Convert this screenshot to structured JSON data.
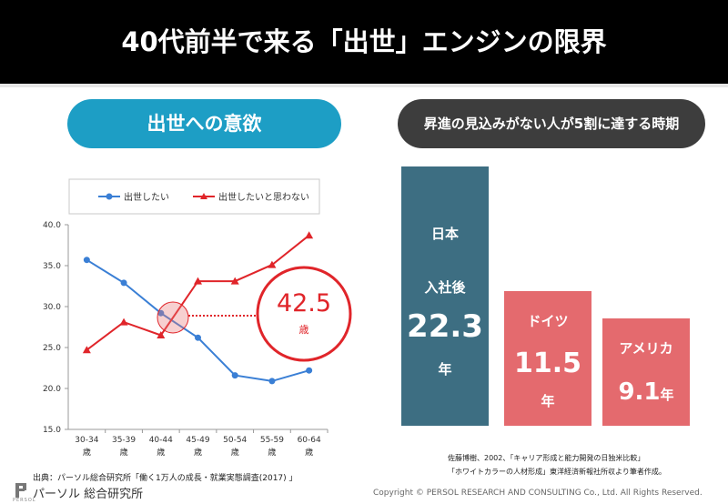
{
  "header": {
    "title": "40代前半で来る「出世」エンジンの限界"
  },
  "left": {
    "pill": "出世への意欲"
  },
  "right": {
    "pill": "昇進の見込みがない人が5割に達する時期"
  },
  "callout": {
    "value": "42.5",
    "unit": "歳"
  },
  "colors": {
    "blue": "#3a7fd5",
    "red": "#e0252a",
    "teal": "#3d6e82",
    "pink": "#e46a6e"
  },
  "chart_data": [
    {
      "type": "line",
      "categories": [
        "30-34\n歳",
        "35-39\n歳",
        "40-44\n歳",
        "45-49\n歳",
        "50-54\n歳",
        "55-59\n歳",
        "60-64\n歳"
      ],
      "series": [
        {
          "name": "出世したい",
          "values": [
            35.7,
            32.9,
            29.2,
            26.2,
            21.6,
            20.9,
            22.2
          ]
        },
        {
          "name": "出世したいと思わない",
          "values": [
            24.7,
            28.1,
            26.5,
            33.1,
            33.1,
            35.1,
            38.7
          ]
        }
      ],
      "ylim": [
        15,
        40
      ],
      "yticks": [
        "15.0",
        "20.0",
        "25.0",
        "30.0",
        "35.0",
        "40.0"
      ],
      "legend": "top",
      "grid": false
    },
    {
      "type": "bar",
      "bars": [
        {
          "label": "日本",
          "sublabel": "入社後",
          "value": 22.3,
          "unit": "年"
        },
        {
          "label": "ドイツ",
          "value": 11.5,
          "unit": "年"
        },
        {
          "label": "アメリカ",
          "value": 9.1,
          "unit": "年"
        }
      ]
    }
  ],
  "sources": {
    "left": "出典：パーソル総合研究所「働く1万人の成長・就業実態調査(2017) 」",
    "right_line1": "佐藤博樹、2002、「キャリア形成と能力開発の日独米比較」",
    "right_line2": "「ホワイトカラーの人材形成」東洋経済新報社所収より筆者作成。"
  },
  "footer": {
    "company": "パーソル 総合研究所",
    "brand": "PERSOL",
    "copyright": "Copyright © PERSOL RESEARCH AND CONSULTING Co., Ltd. All Rights Reserved."
  }
}
